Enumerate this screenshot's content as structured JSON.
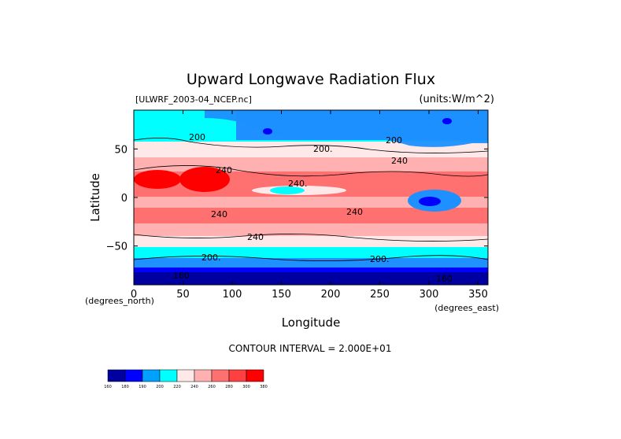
{
  "chart_data": {
    "type": "heatmap",
    "title": "Upward Longwave Radiation Flux",
    "source_label": "[ULWRF_2003-04_NCEP.nc]",
    "units_label": "(units:W/m^2)",
    "xlabel": "Longitude",
    "ylabel": "Latitude",
    "x_units_label": "(degrees_east)",
    "y_units_label": "(degrees_north)",
    "xlim": [
      0,
      360
    ],
    "ylim": [
      -90,
      90
    ],
    "x_ticks": [
      0,
      50,
      100,
      150,
      200,
      250,
      300,
      350
    ],
    "x_tick_labels": [
      "0",
      "50",
      "100",
      "150",
      "200",
      "250",
      "300",
      "350"
    ],
    "y_ticks": [
      50,
      0,
      -50
    ],
    "y_tick_labels": [
      "50",
      "0",
      "−50"
    ],
    "contour_interval_label": "CONTOUR INTERVAL = 2.000E+01",
    "contour_labels": [
      "200",
      "200.",
      "200",
      "240",
      "240.",
      "240",
      "240",
      "240",
      "200.",
      "200.",
      "180",
      "160",
      "240"
    ],
    "colorbar": {
      "levels": [
        "160",
        "180",
        "190",
        "200",
        "220",
        "240",
        "260",
        "280",
        "300",
        "380"
      ],
      "colors": [
        "#0000a0",
        "#0000ff",
        "#00a0ff",
        "#00ffff",
        "#ffe8e8",
        "#ffb0b0",
        "#ff7070",
        "#ff4040",
        "#ff0000"
      ]
    },
    "grid": false
  },
  "colors": {
    "deep_blue": "#0000a0",
    "blue": "#0000ff",
    "mid_blue": "#1e90ff",
    "cyan": "#00ffff",
    "pale_pink": "#ffe8e8",
    "pink": "#ffb0b0",
    "salmon": "#ff7070",
    "red": "#ff4040",
    "deep_red": "#ff0000"
  }
}
